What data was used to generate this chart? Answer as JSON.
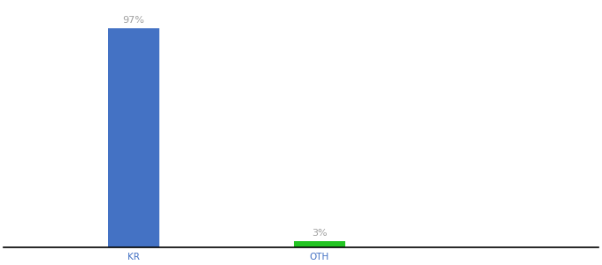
{
  "categories": [
    "KR",
    "OTH"
  ],
  "values": [
    97,
    3
  ],
  "bar_colors": [
    "#4472c4",
    "#22c422"
  ],
  "label_color": "#a0a0a0",
  "label_fontsize": 8,
  "tick_fontsize": 7.5,
  "tick_color": "#4472c4",
  "axis_line_color": "#000000",
  "background_color": "#ffffff",
  "ylim": [
    0,
    108
  ],
  "bar_width": 0.28,
  "x_positions": [
    1,
    2
  ],
  "xlim": [
    0.3,
    3.5
  ]
}
